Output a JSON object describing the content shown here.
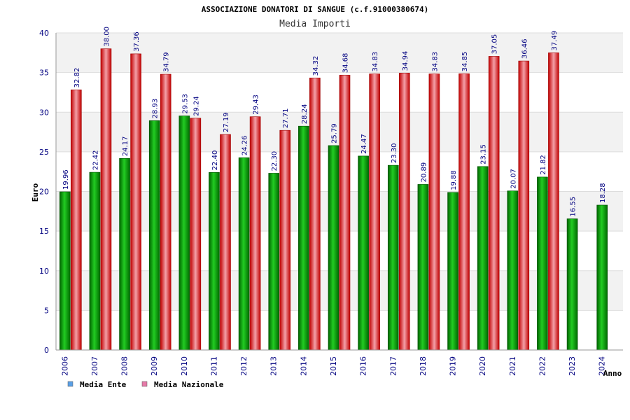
{
  "chart_data": {
    "type": "bar",
    "title": "ASSOCIAZIONE DONATORI DI SANGUE (c.f.91000380674)",
    "subtitle": "Media Importi",
    "xlabel": "Anno",
    "ylabel": "Euro",
    "ylim": [
      0,
      40
    ],
    "yticks": [
      "0",
      "5",
      "10",
      "15",
      "20",
      "25",
      "30",
      "35",
      "40"
    ],
    "grid": true,
    "legend_position": "bottom-left",
    "categories": [
      "2006",
      "2007",
      "2008",
      "2009",
      "2010",
      "2011",
      "2012",
      "2013",
      "2014",
      "2015",
      "2016",
      "2017",
      "2018",
      "2019",
      "2020",
      "2021",
      "2022",
      "2023",
      "2024"
    ],
    "series": [
      {
        "name": "Media Ente",
        "color": "#00a000",
        "legend_color": "#5aa0e6",
        "values": [
          19.96,
          22.42,
          24.17,
          28.93,
          29.53,
          22.4,
          24.26,
          22.3,
          28.24,
          25.79,
          24.47,
          23.3,
          20.89,
          19.88,
          23.15,
          20.07,
          21.82,
          16.55,
          18.28
        ],
        "labels": [
          "19.96",
          "22.42",
          "24.17",
          "28.93",
          "29.53",
          "22.40",
          "24.26",
          "22.30",
          "28.24",
          "25.79",
          "24.47",
          "23.30",
          "20.89",
          "19.88",
          "23.15",
          "20.07",
          "21.82",
          "16.55",
          "18.28"
        ]
      },
      {
        "name": "Media Nazionale",
        "color": "#e02020",
        "legend_color": "#e67aa8",
        "values": [
          32.82,
          38.0,
          37.36,
          34.79,
          29.24,
          27.19,
          29.43,
          27.71,
          34.32,
          34.68,
          34.83,
          34.94,
          34.83,
          34.85,
          37.05,
          36.46,
          37.49,
          null,
          null
        ],
        "labels": [
          "32.82",
          "38.00",
          "37.36",
          "34.79",
          "29.24",
          "27.19",
          "29.43",
          "27.71",
          "34.32",
          "34.68",
          "34.83",
          "34.94",
          "34.83",
          "34.85",
          "37.05",
          "36.46",
          "37.49",
          "",
          ""
        ]
      }
    ]
  }
}
